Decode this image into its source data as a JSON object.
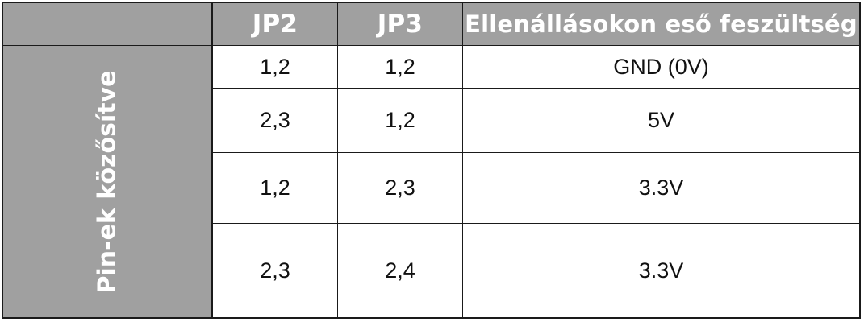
{
  "table": {
    "headers": [
      "",
      "JP2",
      "JP3",
      "Ellenállásokon eső feszültség"
    ],
    "row_group_label": "Pin-ek közősítve",
    "rows": [
      {
        "jp2": "1,2",
        "jp3": "1,2",
        "voltage": "GND (0V)"
      },
      {
        "jp2": "2,3",
        "jp3": "1,2",
        "voltage": "5V"
      },
      {
        "jp2": "1,2",
        "jp3": "2,3",
        "voltage": "3.3V"
      },
      {
        "jp2": "2,3",
        "jp3": "2,4",
        "voltage": "3.3V"
      }
    ]
  },
  "colors": {
    "header_bg": "#a0a0a0",
    "header_text": "#ffffff",
    "border": "#1a1a1a",
    "cell_bg": "#ffffff"
  }
}
